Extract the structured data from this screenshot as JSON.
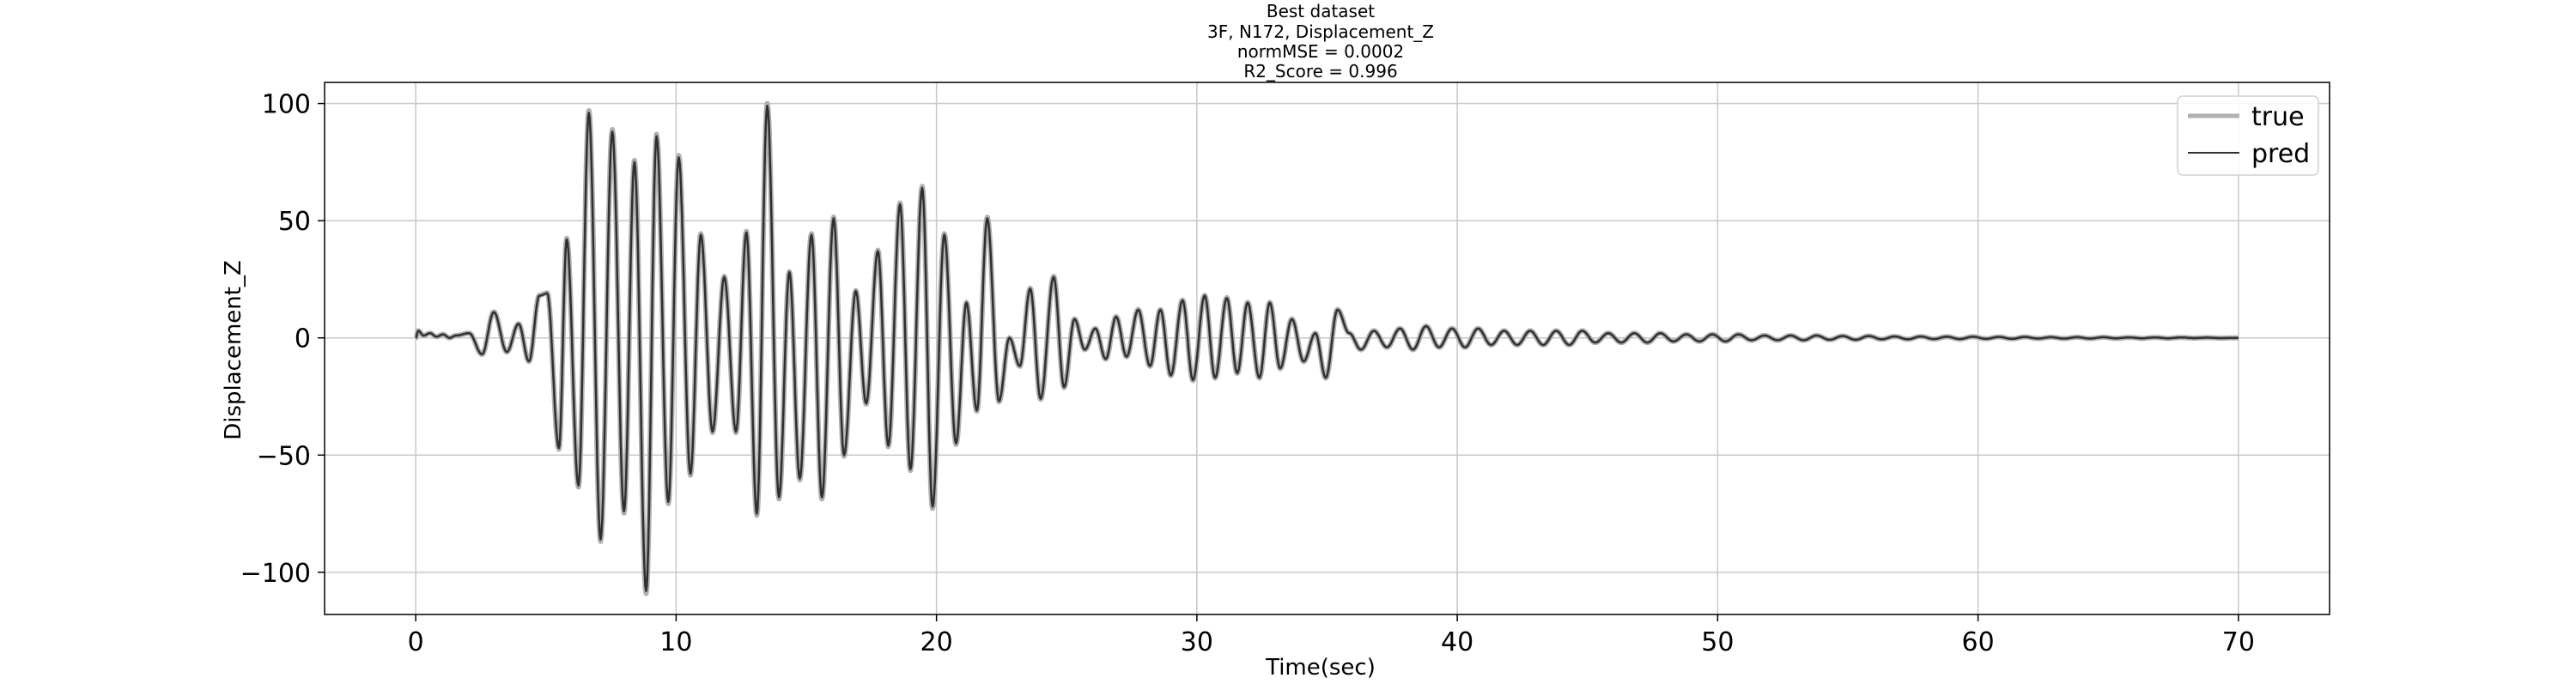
{
  "chart_data": {
    "type": "line",
    "title_lines": [
      "Best dataset",
      "3F, N172, Displacement_Z",
      "normMSE = 0.0002",
      "R2_Score = 0.996"
    ],
    "xlabel": "Time(sec)",
    "ylabel": "Displacement_Z",
    "xlim": [
      -3.5,
      73.5
    ],
    "ylim": [
      -118,
      109
    ],
    "x_ticks": [
      0,
      10,
      20,
      30,
      40,
      50,
      60,
      70
    ],
    "y_ticks": [
      -100,
      -50,
      0,
      50,
      100
    ],
    "grid": true,
    "legend_position": "top-right",
    "series": [
      {
        "name": "true",
        "color": "#b0b0b0"
      },
      {
        "name": "pred",
        "color": "#303030"
      }
    ],
    "x_range": [
      0,
      70
    ],
    "peaks": [
      [
        0.0,
        0
      ],
      [
        0.1,
        3
      ],
      [
        0.3,
        1
      ],
      [
        0.55,
        2
      ],
      [
        0.8,
        0.5
      ],
      [
        1.05,
        1.5
      ],
      [
        1.3,
        0
      ],
      [
        1.55,
        1
      ],
      [
        2.05,
        2
      ],
      [
        2.55,
        -7
      ],
      [
        3.0,
        11
      ],
      [
        3.5,
        -6
      ],
      [
        3.95,
        6
      ],
      [
        4.35,
        -10
      ],
      [
        4.75,
        18
      ],
      [
        5.05,
        19
      ],
      [
        5.5,
        -47
      ],
      [
        5.8,
        42
      ],
      [
        6.25,
        -63
      ],
      [
        6.65,
        96
      ],
      [
        7.1,
        -86
      ],
      [
        7.55,
        88
      ],
      [
        8.0,
        -74
      ],
      [
        8.4,
        75
      ],
      [
        8.85,
        -108
      ],
      [
        9.25,
        86
      ],
      [
        9.7,
        -70
      ],
      [
        10.1,
        77
      ],
      [
        10.55,
        -58
      ],
      [
        10.95,
        44
      ],
      [
        11.4,
        -40
      ],
      [
        11.85,
        26
      ],
      [
        12.3,
        -40
      ],
      [
        12.7,
        45
      ],
      [
        13.1,
        -75
      ],
      [
        13.5,
        99
      ],
      [
        13.95,
        -68
      ],
      [
        14.35,
        28
      ],
      [
        14.75,
        -60
      ],
      [
        15.2,
        44
      ],
      [
        15.6,
        -68
      ],
      [
        16.05,
        51
      ],
      [
        16.45,
        -50
      ],
      [
        16.9,
        20
      ],
      [
        17.3,
        -28
      ],
      [
        17.75,
        37
      ],
      [
        18.15,
        -46
      ],
      [
        18.6,
        57
      ],
      [
        19.0,
        -56
      ],
      [
        19.45,
        64
      ],
      [
        19.85,
        -72
      ],
      [
        20.3,
        44
      ],
      [
        20.75,
        -45
      ],
      [
        21.15,
        15
      ],
      [
        21.55,
        -31
      ],
      [
        21.95,
        51
      ],
      [
        22.4,
        -27
      ],
      [
        22.8,
        0
      ],
      [
        23.2,
        -12
      ],
      [
        23.6,
        21
      ],
      [
        24.0,
        -26
      ],
      [
        24.5,
        26
      ],
      [
        24.9,
        -21
      ],
      [
        25.3,
        8
      ],
      [
        25.7,
        -5
      ],
      [
        26.1,
        4
      ],
      [
        26.5,
        -9
      ],
      [
        26.9,
        9
      ],
      [
        27.3,
        -8
      ],
      [
        27.75,
        12
      ],
      [
        28.2,
        -12
      ],
      [
        28.6,
        12
      ],
      [
        29.0,
        -16
      ],
      [
        29.45,
        16
      ],
      [
        29.85,
        -18
      ],
      [
        30.3,
        18
      ],
      [
        30.7,
        -17
      ],
      [
        31.15,
        17
      ],
      [
        31.55,
        -15
      ],
      [
        31.95,
        15
      ],
      [
        32.4,
        -17
      ],
      [
        32.8,
        15
      ],
      [
        33.2,
        -13
      ],
      [
        33.65,
        8
      ],
      [
        34.1,
        -10
      ],
      [
        34.55,
        2
      ],
      [
        34.95,
        -17
      ],
      [
        35.4,
        12
      ],
      [
        35.85,
        2
      ],
      [
        36.3,
        -5
      ],
      [
        36.8,
        3
      ],
      [
        37.3,
        -4
      ],
      [
        37.8,
        4
      ],
      [
        38.3,
        -5
      ],
      [
        38.8,
        5
      ],
      [
        39.3,
        -4
      ],
      [
        39.8,
        4
      ],
      [
        40.3,
        -4
      ],
      [
        40.8,
        4
      ],
      [
        41.3,
        -3
      ],
      [
        41.8,
        3
      ],
      [
        42.3,
        -3
      ],
      [
        42.8,
        3
      ],
      [
        43.3,
        -3
      ],
      [
        43.8,
        3
      ],
      [
        44.3,
        -3
      ],
      [
        44.8,
        3
      ],
      [
        45.3,
        -2
      ],
      [
        45.8,
        2
      ],
      [
        46.3,
        -2
      ],
      [
        46.8,
        2
      ],
      [
        47.3,
        -2
      ],
      [
        47.8,
        2
      ],
      [
        48.3,
        -1.5
      ],
      [
        48.8,
        1.5
      ],
      [
        49.3,
        -1.5
      ],
      [
        49.8,
        1.5
      ],
      [
        50.3,
        -1.5
      ],
      [
        50.8,
        1.5
      ],
      [
        51.3,
        -1
      ],
      [
        51.8,
        1
      ],
      [
        52.3,
        -1
      ],
      [
        52.8,
        1
      ],
      [
        53.3,
        -1
      ],
      [
        53.8,
        1
      ],
      [
        54.3,
        -0.8
      ],
      [
        54.8,
        0.8
      ],
      [
        55.3,
        -0.8
      ],
      [
        55.8,
        0.8
      ],
      [
        56.3,
        -0.6
      ],
      [
        56.8,
        0.6
      ],
      [
        57.3,
        -0.6
      ],
      [
        57.8,
        0.6
      ],
      [
        58.3,
        -0.5
      ],
      [
        58.8,
        0.5
      ],
      [
        59.3,
        -0.5
      ],
      [
        59.8,
        0.5
      ],
      [
        60.3,
        -0.4
      ],
      [
        60.8,
        0.4
      ],
      [
        61.3,
        -0.4
      ],
      [
        61.8,
        0.4
      ],
      [
        62.3,
        -0.3
      ],
      [
        62.8,
        0.3
      ],
      [
        63.3,
        -0.3
      ],
      [
        63.8,
        0.3
      ],
      [
        64.3,
        -0.3
      ],
      [
        64.8,
        0.3
      ],
      [
        65.3,
        -0.2
      ],
      [
        65.8,
        0.2
      ],
      [
        66.3,
        -0.2
      ],
      [
        66.8,
        0.2
      ],
      [
        67.3,
        -0.2
      ],
      [
        67.8,
        0.2
      ],
      [
        68.3,
        -0.1
      ],
      [
        68.8,
        0.1
      ],
      [
        69.3,
        -0.1
      ],
      [
        70.0,
        0
      ]
    ]
  }
}
